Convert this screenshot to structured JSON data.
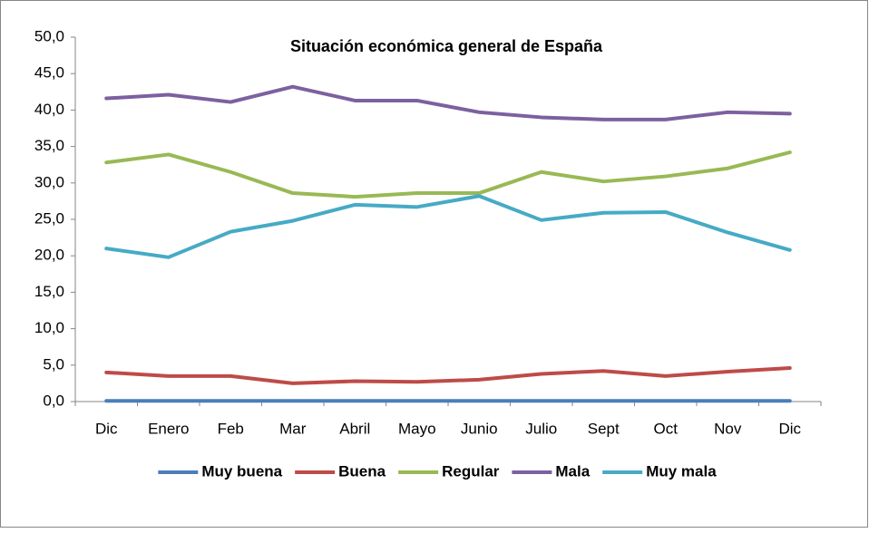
{
  "chart_data": {
    "type": "line",
    "title": "Situación económica general de España",
    "categories": [
      "Dic",
      "Enero",
      "Feb",
      "Mar",
      "Abril",
      "Mayo",
      "Junio",
      "Julio",
      "Sept",
      "Oct",
      "Nov",
      "Dic"
    ],
    "series": [
      {
        "name": "Muy buena",
        "color": "#4a7ebb",
        "values": [
          0.1,
          0.1,
          0.1,
          0.1,
          0.1,
          0.1,
          0.1,
          0.1,
          0.1,
          0.1,
          0.1,
          0.1
        ]
      },
      {
        "name": "Buena",
        "color": "#be4b48",
        "values": [
          4.0,
          3.5,
          3.5,
          2.5,
          2.8,
          2.7,
          3.0,
          3.8,
          4.2,
          3.5,
          4.1,
          4.6
        ]
      },
      {
        "name": "Regular",
        "color": "#98b954",
        "values": [
          32.8,
          33.9,
          31.5,
          28.6,
          28.1,
          28.6,
          28.6,
          31.5,
          30.2,
          30.9,
          32.0,
          34.2
        ]
      },
      {
        "name": "Mala",
        "color": "#7d60a0",
        "values": [
          41.6,
          42.1,
          41.1,
          43.2,
          41.3,
          41.3,
          39.7,
          39.0,
          38.7,
          38.7,
          39.7,
          39.5
        ]
      },
      {
        "name": "Muy mala",
        "color": "#46aac5",
        "values": [
          21.0,
          19.8,
          23.3,
          24.8,
          27.0,
          26.7,
          28.2,
          24.9,
          25.9,
          26.0,
          23.2,
          20.8
        ]
      }
    ],
    "ylim": [
      0,
      50
    ],
    "yticks": [
      {
        "value": 0,
        "label": "0,0"
      },
      {
        "value": 5,
        "label": "5,0"
      },
      {
        "value": 10,
        "label": "10,0"
      },
      {
        "value": 15,
        "label": "15,0"
      },
      {
        "value": 20,
        "label": "20,0"
      },
      {
        "value": 25,
        "label": "25,0"
      },
      {
        "value": 30,
        "label": "30,0"
      },
      {
        "value": 35,
        "label": "35,0"
      },
      {
        "value": 40,
        "label": "40,0"
      },
      {
        "value": 45,
        "label": "45,0"
      },
      {
        "value": 50,
        "label": "50,0"
      }
    ],
    "grid": false,
    "legend": "bottom"
  }
}
